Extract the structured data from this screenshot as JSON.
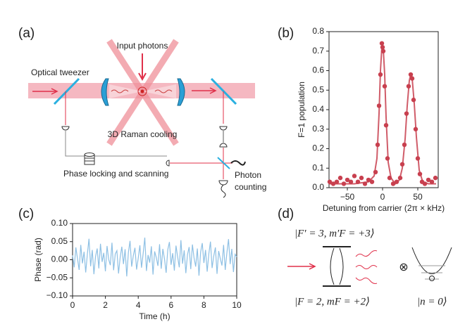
{
  "panel_labels": [
    "(a)",
    "(b)",
    "(c)",
    "(d)"
  ],
  "diagram_a": {
    "input_photons": "Input photons",
    "optical_tweezer": "Optical tweezer",
    "raman_cooling": "3D Raman cooling",
    "phase_locking": "Phase locking and scanning",
    "photon_counting": [
      "Photon",
      "counting"
    ]
  },
  "diagram_d": {
    "upper_state": "|F′ = 3, m′F = +3⟩",
    "lower_state": "|F = 2, mF = +2⟩",
    "tensor": "⊗",
    "motional_state": "|n = 0⟩"
  },
  "chart_data": [
    {
      "type": "scatter",
      "xlabel": "Detuning from carrier (2π × kHz)",
      "ylabel": "F=1 population",
      "color": "#c8404f",
      "x": [
        -75,
        -70,
        -65,
        -60,
        -55,
        -50,
        -45,
        -40,
        -35,
        -30,
        -25,
        -20,
        -15,
        -10,
        -7,
        -5,
        -3,
        -1,
        0,
        1,
        3,
        5,
        7,
        10,
        15,
        20,
        25,
        28,
        31,
        34,
        37,
        40,
        42,
        44,
        47,
        50,
        53,
        56,
        60,
        65,
        70,
        75
      ],
      "values": [
        0.03,
        0.02,
        0.03,
        0.05,
        0.02,
        0.04,
        0.03,
        0.06,
        0.03,
        0.05,
        0.02,
        0.04,
        0.03,
        0.08,
        0.22,
        0.42,
        0.58,
        0.74,
        0.72,
        0.7,
        0.52,
        0.32,
        0.15,
        0.05,
        0.02,
        0.03,
        0.05,
        0.12,
        0.22,
        0.38,
        0.52,
        0.58,
        0.56,
        0.45,
        0.3,
        0.15,
        0.07,
        0.03,
        0.02,
        0.04,
        0.03,
        0.05
      ],
      "fit": {
        "x": [
          -76,
          -40,
          -20,
          -12,
          -8,
          -5,
          -3,
          -1,
          0,
          1,
          3,
          5,
          8,
          12,
          18,
          24,
          28,
          32,
          35,
          38,
          40,
          42,
          45,
          48,
          52,
          57,
          65,
          76
        ],
        "values": [
          0.02,
          0.02,
          0.03,
          0.06,
          0.15,
          0.38,
          0.6,
          0.72,
          0.73,
          0.71,
          0.58,
          0.36,
          0.13,
          0.05,
          0.02,
          0.04,
          0.1,
          0.25,
          0.42,
          0.55,
          0.58,
          0.56,
          0.43,
          0.26,
          0.09,
          0.03,
          0.02,
          0.02
        ]
      },
      "xlim": [
        -76,
        79
      ],
      "xticks": [
        {
          "value": -50,
          "label": "−50"
        },
        0,
        50
      ],
      "ylim": [
        0,
        0.8
      ],
      "yticks": [
        {
          "value": 0,
          "label": "0.0"
        },
        0.1,
        0.2,
        0.3,
        0.4,
        0.5,
        0.6,
        0.7,
        0.8
      ]
    },
    {
      "type": "line",
      "xlabel": "Time (h)",
      "ylabel": "Phase (rad)",
      "color": "#8ec0e4",
      "x": [
        0,
        0.1,
        0.2,
        0.3,
        0.4,
        0.5,
        0.6,
        0.7,
        0.8,
        0.9,
        1,
        1.1,
        1.2,
        1.3,
        1.4,
        1.5,
        1.6,
        1.7,
        1.8,
        1.9,
        2,
        2.1,
        2.2,
        2.3,
        2.4,
        2.5,
        2.6,
        2.7,
        2.8,
        2.9,
        3,
        3.1,
        3.2,
        3.3,
        3.4,
        3.5,
        3.6,
        3.7,
        3.8,
        3.9,
        4,
        4.1,
        4.2,
        4.3,
        4.4,
        4.5,
        4.6,
        4.7,
        4.8,
        4.9,
        5,
        5.1,
        5.2,
        5.3,
        5.4,
        5.5,
        5.6,
        5.7,
        5.8,
        5.9,
        6,
        6.1,
        6.2,
        6.3,
        6.4,
        6.5,
        6.6,
        6.7,
        6.8,
        6.9,
        7,
        7.1,
        7.2,
        7.3,
        7.4,
        7.5,
        7.6,
        7.7,
        7.8,
        7.9,
        8,
        8.1,
        8.2,
        8.3,
        8.4,
        8.5,
        8.6,
        8.7,
        8.8,
        8.9,
        9,
        9.1,
        9.2,
        9.3,
        9.4,
        9.5,
        9.6,
        9.7,
        9.8,
        9.9,
        10
      ],
      "values": [
        0.012,
        -0.021,
        0.034,
        0.003,
        -0.028,
        0.041,
        -0.01,
        0.022,
        -0.035,
        0.015,
        0.058,
        -0.018,
        0.027,
        -0.04,
        0.009,
        0.031,
        -0.024,
        0.044,
        -0.006,
        0.019,
        -0.032,
        0.038,
        0.001,
        -0.015,
        0.047,
        -0.029,
        0.016,
        0.025,
        -0.038,
        0.007,
        0.036,
        -0.012,
        0.029,
        -0.046,
        0.02,
        0.052,
        -0.019,
        0.011,
        0.033,
        -0.027,
        0.004,
        0.04,
        -0.022,
        0.017,
        0.061,
        -0.031,
        0.013,
        -0.008,
        0.037,
        -0.041,
        0.023,
        0.006,
        -0.017,
        0.043,
        -0.025,
        0.03,
        0.002,
        -0.036,
        0.028,
        0.049,
        -0.014,
        0.018,
        -0.03,
        0.039,
        0.008,
        -0.021,
        0.054,
        -0.011,
        0.026,
        -0.037,
        0.014,
        0.035,
        -0.026,
        0.042,
        0.005,
        -0.019,
        0.031,
        -0.044,
        0.021,
        0.046,
        -0.009,
        0.027,
        -0.033,
        0.016,
        0.05,
        -0.023,
        0.01,
        0.034,
        -0.039,
        0.024,
        0.003,
        -0.016,
        0.041,
        -0.028,
        0.019,
        0.057,
        -0.012,
        0.03,
        -0.034,
        0.015,
        0.008
      ],
      "xlim": [
        0,
        10
      ],
      "xticks": [
        0,
        2,
        4,
        6,
        8,
        10
      ],
      "ylim": [
        -0.1,
        0.1
      ],
      "yticks": [
        {
          "value": -0.1,
          "label": "−0.10"
        },
        {
          "value": -0.05,
          "label": "−0.05"
        },
        {
          "value": 0,
          "label": "0.00"
        },
        {
          "value": 0.05,
          "label": "0.05"
        },
        {
          "value": 0.1,
          "label": "0.10"
        }
      ]
    }
  ]
}
